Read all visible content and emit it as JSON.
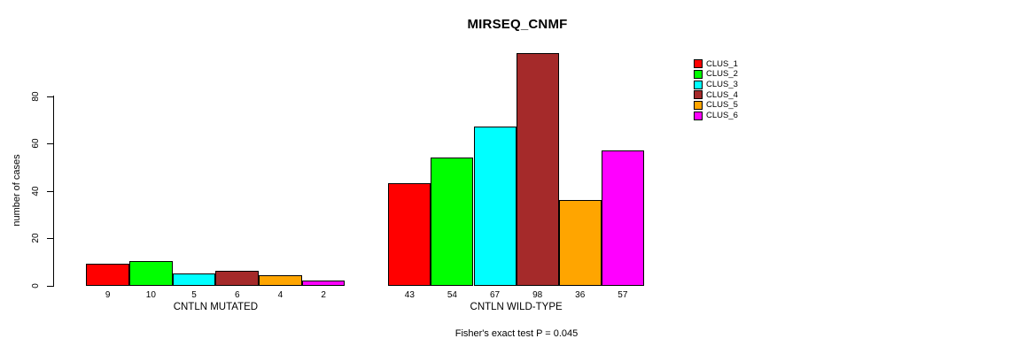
{
  "title": "MIRSEQ_CNMF",
  "y_axis": {
    "label": "number of cases"
  },
  "footer": "Fisher's exact test P = 0.045",
  "legend": {
    "items": [
      {
        "label": "CLUS_1",
        "color": "#FF0000"
      },
      {
        "label": "CLUS_2",
        "color": "#00FF00"
      },
      {
        "label": "CLUS_3",
        "color": "#00FFFF"
      },
      {
        "label": "CLUS_4",
        "color": "#A52A2A"
      },
      {
        "label": "CLUS_5",
        "color": "#FFA500"
      },
      {
        "label": "CLUS_6",
        "color": "#FF00FF"
      }
    ]
  },
  "chart_data": {
    "type": "bar",
    "title": "MIRSEQ_CNMF",
    "ylabel": "number of cases",
    "ylim": [
      0,
      98
    ],
    "yticks": [
      0,
      20,
      40,
      60,
      80
    ],
    "grid": false,
    "legend_position": "right-outside-top",
    "categories": [
      "CNTLN MUTATED",
      "CNTLN WILD-TYPE"
    ],
    "series": [
      {
        "name": "CLUS_1",
        "color": "#FF0000",
        "values": [
          9,
          43
        ]
      },
      {
        "name": "CLUS_2",
        "color": "#00FF00",
        "values": [
          10,
          54
        ]
      },
      {
        "name": "CLUS_3",
        "color": "#00FFFF",
        "values": [
          5,
          67
        ]
      },
      {
        "name": "CLUS_4",
        "color": "#A52A2A",
        "values": [
          6,
          98
        ]
      },
      {
        "name": "CLUS_5",
        "color": "#FFA500",
        "values": [
          4,
          36
        ]
      },
      {
        "name": "CLUS_6",
        "color": "#FF00FF",
        "values": [
          2,
          57
        ]
      }
    ],
    "bar_value_labels": [
      [
        9,
        10,
        5,
        6,
        4,
        2
      ],
      [
        43,
        54,
        67,
        98,
        36,
        57
      ]
    ],
    "annotation": "Fisher's exact test P = 0.045"
  }
}
